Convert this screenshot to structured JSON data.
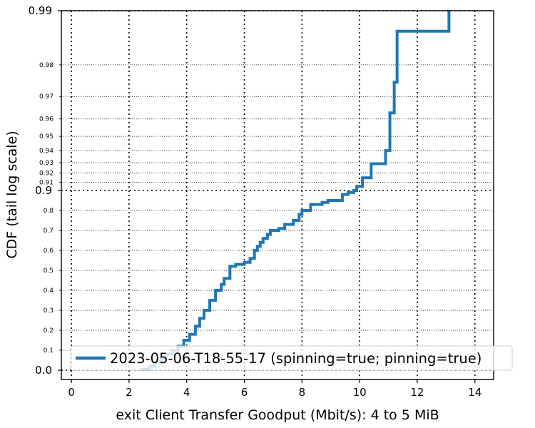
{
  "chart_data": {
    "type": "line",
    "title": "",
    "xlabel": "exit Client Transfer Goodput (Mbit/s): 4 to 5 MiB",
    "ylabel": "CDF (tail log scale)",
    "xlim": [
      -0.35,
      14.65
    ],
    "x_ticks": [
      {
        "value": 0,
        "label": "0"
      },
      {
        "value": 2,
        "label": "2"
      },
      {
        "value": 4,
        "label": "4"
      },
      {
        "value": 6,
        "label": "6"
      },
      {
        "value": 8,
        "label": "8"
      },
      {
        "value": 10,
        "label": "10"
      },
      {
        "value": 12,
        "label": "12"
      },
      {
        "value": 14,
        "label": "14"
      }
    ],
    "y_scale": "tail log",
    "y_ticks_major": [
      {
        "value": 0.0,
        "label": "0.0"
      },
      {
        "value": 0.9,
        "label": "0.9"
      },
      {
        "value": 0.99,
        "label": "0.99"
      }
    ],
    "y_ticks_minor": [
      {
        "value": 0.1,
        "label": "0.1"
      },
      {
        "value": 0.2,
        "label": "0.2"
      },
      {
        "value": 0.3,
        "label": "0.3"
      },
      {
        "value": 0.4,
        "label": "0.4"
      },
      {
        "value": 0.5,
        "label": "0.5"
      },
      {
        "value": 0.6,
        "label": "0.6"
      },
      {
        "value": 0.7,
        "label": "0.7"
      },
      {
        "value": 0.8,
        "label": "0.8"
      },
      {
        "value": 0.91,
        "label": "0.91"
      },
      {
        "value": 0.92,
        "label": "0.92"
      },
      {
        "value": 0.93,
        "label": "0.93"
      },
      {
        "value": 0.94,
        "label": "0.94"
      },
      {
        "value": 0.95,
        "label": "0.95"
      },
      {
        "value": 0.96,
        "label": "0.96"
      },
      {
        "value": 0.97,
        "label": "0.97"
      },
      {
        "value": 0.98,
        "label": "0.98"
      }
    ],
    "grid": true,
    "legend_position": "bottom-right",
    "series": [
      {
        "name": "2023-05-06-T18-55-17 (spinning=true; pinning=true)",
        "color": "#1f77b4",
        "x": [
          2.4,
          2.7,
          2.9,
          3.1,
          3.3,
          3.5,
          3.7,
          3.9,
          4.1,
          4.3,
          4.45,
          4.6,
          4.8,
          5.0,
          5.2,
          5.3,
          5.5,
          5.7,
          6.0,
          6.2,
          6.35,
          6.45,
          6.55,
          6.65,
          6.8,
          6.9,
          7.2,
          7.4,
          7.7,
          7.9,
          8.0,
          8.3,
          8.7,
          8.9,
          9.4,
          9.6,
          9.8,
          9.9,
          10.1,
          10.4,
          10.9,
          11.05,
          11.2,
          11.3,
          13.1,
          13.1
        ],
        "y": [
          0.005,
          0.02,
          0.04,
          0.06,
          0.08,
          0.1,
          0.12,
          0.15,
          0.18,
          0.22,
          0.26,
          0.3,
          0.35,
          0.4,
          0.43,
          0.46,
          0.52,
          0.53,
          0.54,
          0.56,
          0.6,
          0.62,
          0.64,
          0.66,
          0.68,
          0.7,
          0.71,
          0.73,
          0.75,
          0.78,
          0.8,
          0.83,
          0.84,
          0.85,
          0.88,
          0.89,
          0.9,
          0.905,
          0.915,
          0.929,
          0.94,
          0.963,
          0.975,
          0.987,
          0.987,
          0.99
        ]
      }
    ]
  }
}
